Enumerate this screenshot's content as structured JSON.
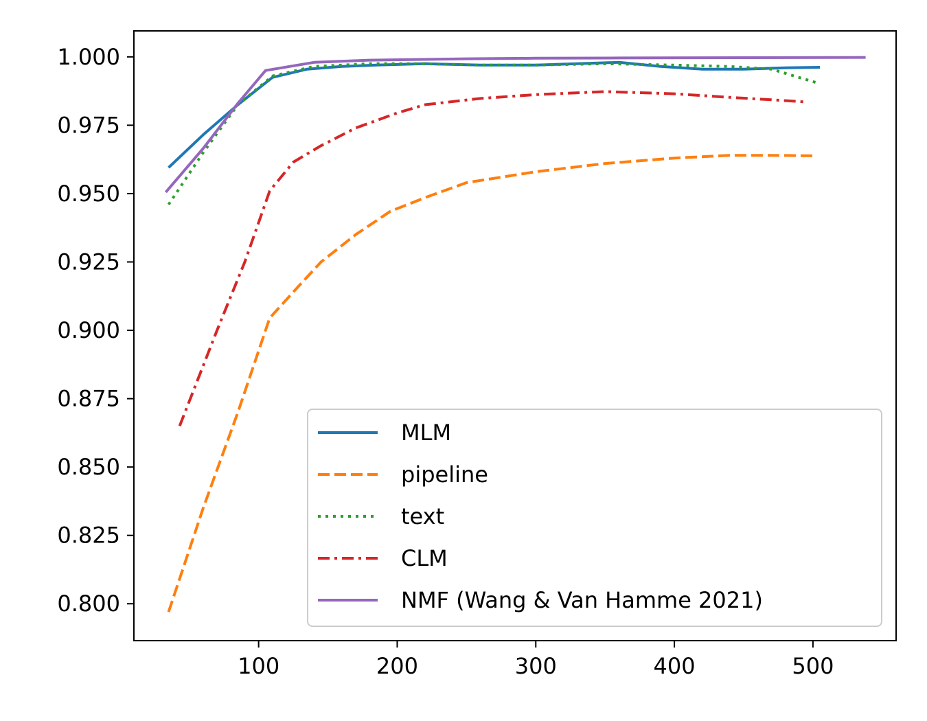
{
  "chart_data": {
    "type": "line",
    "title": "",
    "xlabel": "",
    "ylabel": "",
    "xlim": [
      10,
      560
    ],
    "ylim": [
      0.7865,
      1.0095
    ],
    "x_ticks": [
      100,
      200,
      300,
      400,
      500
    ],
    "x_tick_labels": [
      "100",
      "200",
      "300",
      "400",
      "500"
    ],
    "y_ticks": [
      0.8,
      0.825,
      0.85,
      0.875,
      0.9,
      0.925,
      0.95,
      0.975,
      1.0
    ],
    "y_tick_labels": [
      "0.800",
      "0.825",
      "0.850",
      "0.875",
      "0.900",
      "0.925",
      "0.950",
      "0.975",
      "1.000"
    ],
    "grid": false,
    "legend_position": "lower-right",
    "series": [
      {
        "name": "MLM",
        "color": "#1f77b4",
        "dash": "solid",
        "x": [
          35,
          60,
          85,
          110,
          135,
          160,
          185,
          220,
          260,
          300,
          330,
          360,
          390,
          420,
          450,
          480,
          505
        ],
        "y": [
          0.9595,
          0.9715,
          0.9825,
          0.9925,
          0.9955,
          0.9965,
          0.997,
          0.9975,
          0.997,
          0.997,
          0.9975,
          0.998,
          0.9965,
          0.9955,
          0.9955,
          0.996,
          0.9962
        ]
      },
      {
        "name": "pipeline",
        "color": "#ff7f0e",
        "dash": "dashed",
        "x": [
          35,
          60,
          85,
          108,
          125,
          145,
          170,
          195,
          220,
          250,
          300,
          350,
          400,
          440,
          470,
          503
        ],
        "y": [
          0.797,
          0.835,
          0.87,
          0.9045,
          0.914,
          0.925,
          0.935,
          0.9435,
          0.9485,
          0.954,
          0.958,
          0.961,
          0.963,
          0.964,
          0.964,
          0.9638
        ]
      },
      {
        "name": "text",
        "color": "#2ca02c",
        "dash": "dotted",
        "x": [
          35,
          60,
          85,
          110,
          140,
          180,
          220,
          260,
          300,
          350,
          400,
          440,
          470,
          503
        ],
        "y": [
          0.946,
          0.965,
          0.9825,
          0.993,
          0.9965,
          0.9975,
          0.9975,
          0.997,
          0.997,
          0.9975,
          0.997,
          0.9965,
          0.9955,
          0.9905
        ]
      },
      {
        "name": "CLM",
        "color": "#d62728",
        "dash": "dashdot",
        "x": [
          43,
          70,
          90,
          108,
          125,
          145,
          170,
          200,
          220,
          260,
          300,
          350,
          400,
          440,
          470,
          495
        ],
        "y": [
          0.865,
          0.9,
          0.925,
          0.951,
          0.9615,
          0.9675,
          0.974,
          0.9795,
          0.9825,
          0.9848,
          0.9862,
          0.9873,
          0.9865,
          0.9852,
          0.9843,
          0.9835
        ]
      },
      {
        "name": "NMF (Wang & Van Hamme 2021)",
        "color": "#9467bd",
        "dash": "solid",
        "x": [
          33,
          60,
          85,
          105,
          140,
          180,
          250,
          300,
          360,
          450,
          538
        ],
        "y": [
          0.9505,
          0.9665,
          0.983,
          0.995,
          0.998,
          0.9988,
          0.9993,
          0.9995,
          0.9996,
          0.9997,
          0.9998
        ]
      }
    ]
  }
}
